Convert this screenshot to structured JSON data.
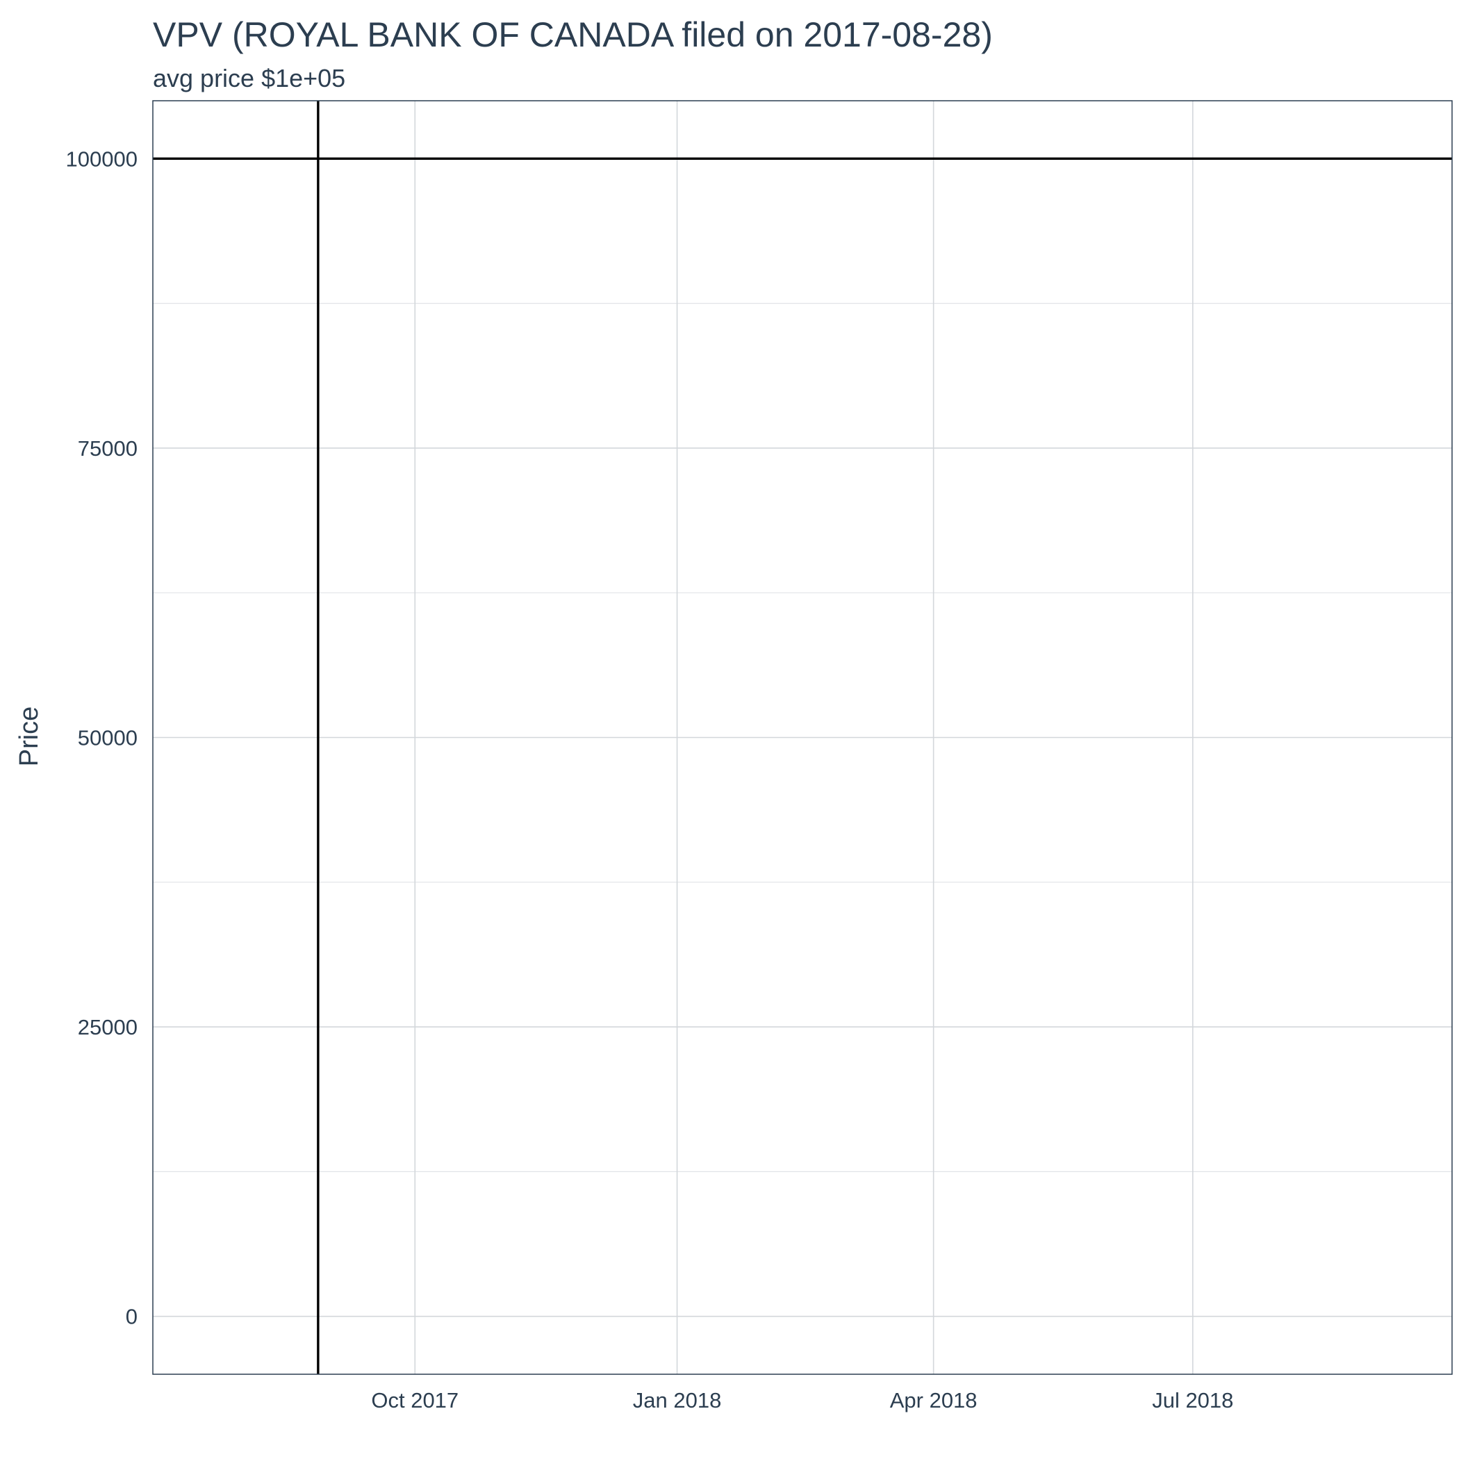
{
  "chart_data": {
    "type": "line",
    "title": "VPV (ROYAL BANK OF CANADA filed on 2017-08-28)",
    "subtitle": "avg price $1e+05",
    "xlabel": "",
    "ylabel": "Price",
    "x_type": "date",
    "xlim": [
      "2017-07-01",
      "2018-09-30"
    ],
    "ylim": [
      -5000,
      105000
    ],
    "x_ticks": [
      {
        "date": "2017-10-01",
        "label": "Oct 2017"
      },
      {
        "date": "2018-01-01",
        "label": "Jan 2018"
      },
      {
        "date": "2018-04-01",
        "label": "Apr 2018"
      },
      {
        "date": "2018-07-01",
        "label": "Jul 2018"
      }
    ],
    "y_ticks": [
      {
        "value": 0,
        "label": "0"
      },
      {
        "value": 25000,
        "label": "25000"
      },
      {
        "value": 50000,
        "label": "50000"
      },
      {
        "value": 75000,
        "label": "75000"
      },
      {
        "value": 100000,
        "label": "100000"
      }
    ],
    "y_minor_ticks": [
      12500,
      37500,
      62500,
      87500
    ],
    "reference_lines": [
      {
        "orientation": "vertical",
        "x": "2017-08-28",
        "color": "#000000"
      },
      {
        "orientation": "horizontal",
        "y": 100000,
        "color": "#000000"
      }
    ],
    "grid": true,
    "legend": "none"
  }
}
